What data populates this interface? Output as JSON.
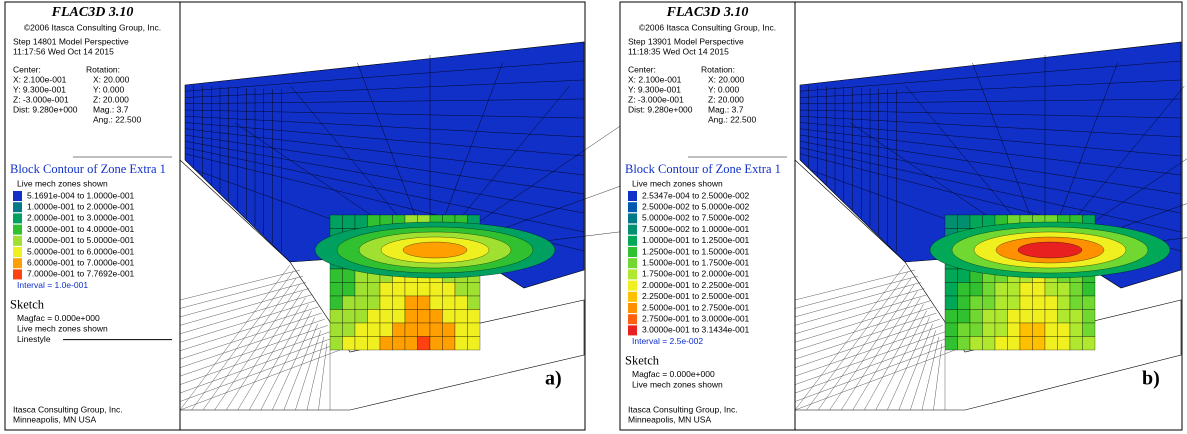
{
  "panels": [
    {
      "title": "FLAC3D 3.10",
      "copyright": "©2006 Itasca Consulting Group, Inc.",
      "step": "Step 14801  Model Perspective",
      "time": "11:17:56 Wed Oct 14 2015",
      "center": {
        "heading": "Center:",
        "lines": [
          "X: 2.100e-001",
          "Y: 9.300e-001",
          "Z: -3.000e-001",
          "Dist: 9.280e+000"
        ]
      },
      "rotation": {
        "heading": "Rotation:",
        "lines": [
          "X: 20.000",
          "Y: 0.000",
          "Z: 20.000",
          "Mag.:    3.7",
          "Ang.: 22.500"
        ]
      },
      "contour_title": "Block Contour of Zone Extra 1",
      "contour_note": "Live mech zones shown",
      "legend": [
        {
          "color": "#1030c8",
          "label": "5.1691e-004 to 1.0000e-001"
        },
        {
          "color": "#007a86",
          "label": "1.0000e-001 to 2.0000e-001"
        },
        {
          "color": "#00a060",
          "label": "2.0000e-001 to 3.0000e-001"
        },
        {
          "color": "#30c030",
          "label": "3.0000e-001 to 4.0000e-001"
        },
        {
          "color": "#a0e030",
          "label": "4.0000e-001 to 5.0000e-001"
        },
        {
          "color": "#f0f020",
          "label": "5.0000e-001 to 6.0000e-001"
        },
        {
          "color": "#ffa000",
          "label": "6.0000e-001 to 7.0000e-001"
        },
        {
          "color": "#ff4010",
          "label": "7.0000e-001 to 7.7692e-001"
        }
      ],
      "interval": "Interval = 1.0e-001",
      "sketch_title": "Sketch",
      "sketch_lines": [
        "Magfac = 0.000e+000",
        "Live mech zones shown",
        "Linestyle"
      ],
      "footer": [
        "Itasca Consulting Group, Inc.",
        "Minneapolis, MN  USA"
      ],
      "label": "a)"
    },
    {
      "title": "FLAC3D 3.10",
      "copyright": "©2006 Itasca Consulting Group, Inc.",
      "step": "Step 13901  Model Perspective",
      "time": "11:18:35 Wed Oct 14 2015",
      "center": {
        "heading": "Center:",
        "lines": [
          "X: 2.100e-001",
          "Y: 9.300e-001",
          "Z: -3.000e-001",
          "Dist: 9.280e+000"
        ]
      },
      "rotation": {
        "heading": "Rotation:",
        "lines": [
          "X: 20.000",
          "Y: 0.000",
          "Z: 20.000",
          "Mag.:    3.7",
          "Ang.: 22.500"
        ]
      },
      "contour_title": "Block Contour of Zone Extra 1",
      "contour_note": "Live mech zones shown",
      "legend": [
        {
          "color": "#1030c8",
          "label": "2.5347e-004 to 2.5000e-002"
        },
        {
          "color": "#0058b0",
          "label": "2.5000e-002 to 5.0000e-002"
        },
        {
          "color": "#007a86",
          "label": "5.0000e-002 to 7.5000e-002"
        },
        {
          "color": "#009070",
          "label": "7.5000e-002 to 1.0000e-001"
        },
        {
          "color": "#00a858",
          "label": "1.0000e-001 to 1.2500e-001"
        },
        {
          "color": "#30c030",
          "label": "1.2500e-001 to 1.5000e-001"
        },
        {
          "color": "#70d830",
          "label": "1.5000e-001 to 1.7500e-001"
        },
        {
          "color": "#b0e830",
          "label": "1.7500e-001 to 2.0000e-001"
        },
        {
          "color": "#f0f020",
          "label": "2.0000e-001 to 2.2500e-001"
        },
        {
          "color": "#ffc000",
          "label": "2.2500e-001 to 2.5000e-001"
        },
        {
          "color": "#ff9000",
          "label": "2.5000e-001 to 2.7500e-001"
        },
        {
          "color": "#ff6010",
          "label": "2.7500e-001 to 3.0000e-001"
        },
        {
          "color": "#e82020",
          "label": "3.0000e-001 to 3.1434e-001"
        }
      ],
      "interval": "Interval = 2.5e-002",
      "sketch_title": "Sketch",
      "sketch_lines": [
        "Magfac = 0.000e+000",
        "Live mech zones shown"
      ],
      "footer": [
        "Itasca Consulting Group, Inc.",
        "Minneapolis, MN  USA"
      ],
      "label": "b)"
    }
  ]
}
